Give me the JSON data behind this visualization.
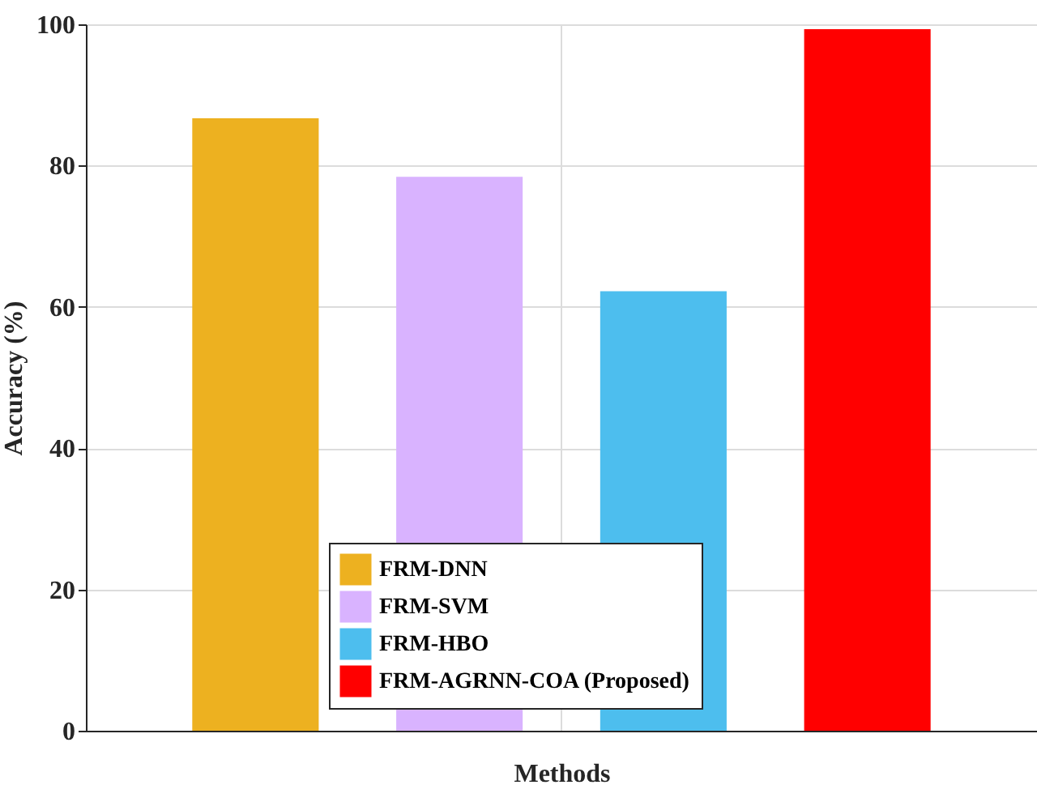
{
  "chart_data": {
    "type": "bar",
    "xlabel": "Methods",
    "ylabel": "Accuracy (%)",
    "categories": [
      null
    ],
    "series": [
      {
        "name": "FRM-DNN",
        "color": "#edb120",
        "values": [
          86.7
        ]
      },
      {
        "name": "FRM-SVM",
        "color": "#d9b3ff",
        "values": [
          78.4
        ]
      },
      {
        "name": "FRM-HBO",
        "color": "#4dbeee",
        "values": [
          62.2
        ]
      },
      {
        "name": "FRM-AGRNN-COA (Proposed)",
        "color": "#ff0000",
        "values": [
          99.3
        ]
      }
    ],
    "ylim": [
      0,
      100
    ],
    "yticks": [
      0,
      20,
      40,
      60,
      80,
      100
    ],
    "grid": true,
    "legend": "bottom",
    "tick_labels": "y"
  }
}
